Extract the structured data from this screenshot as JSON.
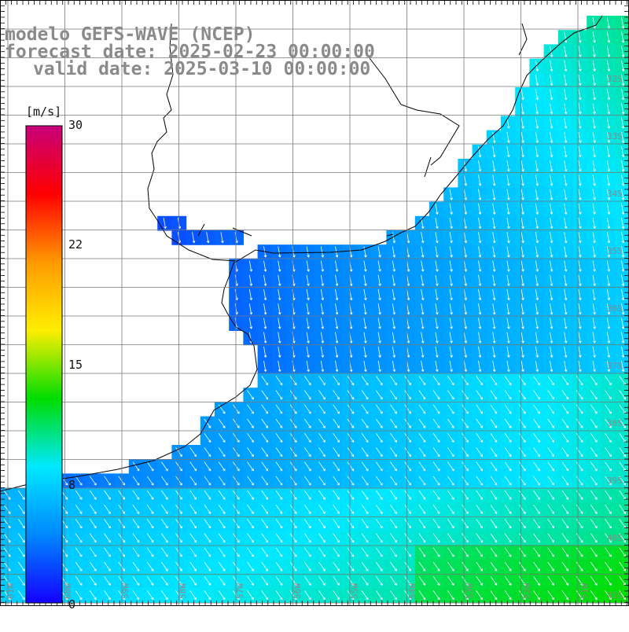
{
  "title": {
    "model": "modelo GEFS-WAVE (NCEP)",
    "forecast": "forecast date: 2025-02-23 00:00:00",
    "valid": "valid date: 2025-03-10 00:00:00"
  },
  "colorbar": {
    "unit": "[m/s]",
    "ticks": [
      "30",
      "22",
      "15",
      "8",
      "0"
    ],
    "min": 0,
    "max": 30,
    "colors": [
      "#1400ff",
      "#0088ff",
      "#00e8ff",
      "#00dd00",
      "#ffee00",
      "#ff9900",
      "#ff0000",
      "#c8007a"
    ]
  },
  "grid": {
    "lat_labels": [
      "32S",
      "33S",
      "34S",
      "35S",
      "36S",
      "37S",
      "38S",
      "39S",
      "40S",
      "41S"
    ],
    "lon_labels": [
      "61W",
      "60W",
      "59W",
      "58W",
      "57W",
      "56W",
      "55W",
      "54W",
      "53W",
      "52W",
      "51W"
    ]
  },
  "colors": {
    "land": "#ffffff",
    "coast": "#000000",
    "grid": "#777777",
    "arrow": "#ffffff",
    "label": "#8a8a8a"
  }
}
